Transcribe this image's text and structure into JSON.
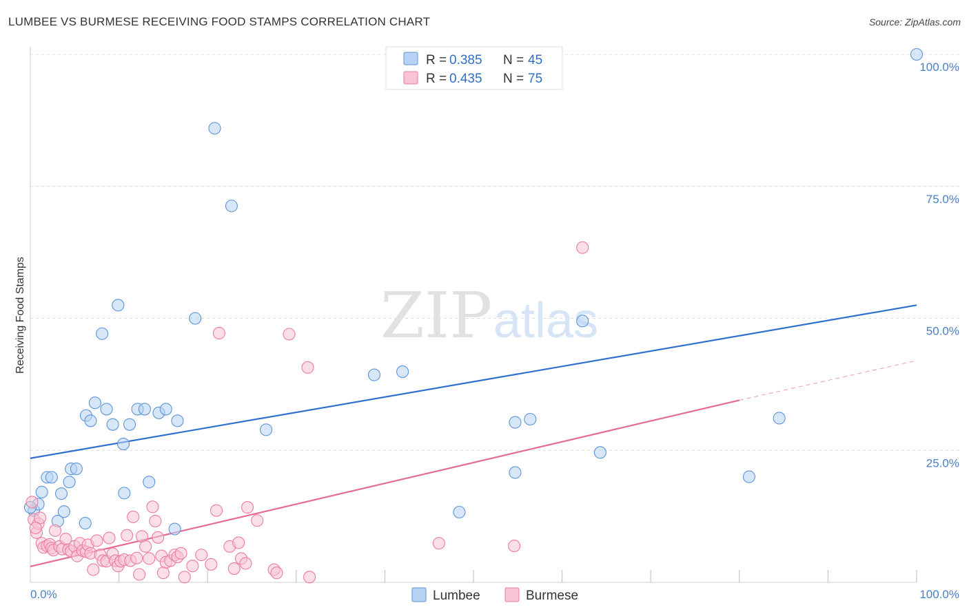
{
  "header": {
    "title": "LUMBEE VS BURMESE RECEIVING FOOD STAMPS CORRELATION CHART",
    "source": "Source: ZipAtlas.com"
  },
  "watermark": {
    "zip": "ZIP",
    "atlas": "atlas"
  },
  "legend": {
    "rows": [
      {
        "r_label": "R =",
        "r_value": "0.385",
        "n_label": "N =",
        "n_value": "45",
        "color": "#a9c8f0"
      },
      {
        "r_label": "R =",
        "r_value": "0.435",
        "n_label": "N =",
        "n_value": "75",
        "color": "#f6b8cb"
      }
    ]
  },
  "bottom_legend": {
    "items": [
      "Lumbee",
      "Burmese"
    ]
  },
  "chart_data": {
    "type": "scatter",
    "ylabel": "Receiving Food Stamps",
    "xlabel": "",
    "xlim": [
      0,
      100
    ],
    "ylim": [
      0,
      100
    ],
    "x_tick_labels": [
      "0.0%",
      "100.0%"
    ],
    "y_tick_labels": [
      "25.0%",
      "50.0%",
      "75.0%",
      "100.0%"
    ],
    "y_ticks": [
      25,
      50,
      75,
      100
    ],
    "grid": "horizontal dashed",
    "legend_position": "top-center",
    "colors": {
      "lumbee": "#5b93d9",
      "lumbee_fill": "#b8d3f3",
      "burmese": "#ec7aa0",
      "burmese_fill": "#f8c4d4",
      "lumbee_line": "#2f6fd0",
      "burmese_line": "#e56b94"
    },
    "series": [
      {
        "name": "Lumbee",
        "trend": {
          "x": [
            0,
            100
          ],
          "y": [
            23.5,
            52.5
          ]
        },
        "points": [
          [
            0.4,
            13.6
          ],
          [
            0.9,
            14.8
          ],
          [
            1.3,
            17.1
          ],
          [
            1.9,
            19.9
          ],
          [
            2.4,
            19.9
          ],
          [
            3.1,
            11.6
          ],
          [
            3.5,
            16.8
          ],
          [
            3.8,
            13.4
          ],
          [
            4.4,
            19.0
          ],
          [
            4.6,
            21.5
          ],
          [
            5.2,
            21.5
          ],
          [
            6.2,
            11.2
          ],
          [
            6.3,
            31.6
          ],
          [
            6.8,
            30.6
          ],
          [
            7.3,
            34.0
          ],
          [
            8.1,
            47.1
          ],
          [
            8.6,
            32.8
          ],
          [
            9.3,
            29.9
          ],
          [
            9.9,
            52.5
          ],
          [
            10.5,
            26.2
          ],
          [
            10.6,
            16.9
          ],
          [
            11.2,
            29.9
          ],
          [
            12.1,
            32.8
          ],
          [
            12.9,
            32.8
          ],
          [
            13.4,
            19.0
          ],
          [
            14.5,
            32.1
          ],
          [
            15.3,
            32.8
          ],
          [
            16.3,
            10.1
          ],
          [
            16.6,
            30.6
          ],
          [
            18.6,
            50.0
          ],
          [
            20.8,
            86.0
          ],
          [
            22.7,
            71.3
          ],
          [
            26.6,
            28.9
          ],
          [
            38.8,
            39.3
          ],
          [
            42.0,
            39.9
          ],
          [
            48.4,
            13.3
          ],
          [
            54.7,
            30.3
          ],
          [
            54.7,
            20.8
          ],
          [
            56.4,
            30.9
          ],
          [
            62.3,
            49.5
          ],
          [
            64.3,
            24.6
          ],
          [
            81.1,
            20.0
          ],
          [
            84.5,
            31.1
          ],
          [
            100.0,
            100.0
          ],
          [
            0.0,
            14.2
          ]
        ]
      },
      {
        "name": "Burmese",
        "trend": {
          "x": [
            0,
            80
          ],
          "y": [
            3.0,
            34.5
          ],
          "dashed_to": {
            "x": 100,
            "y": 42.0
          }
        },
        "points": [
          [
            0.4,
            11.9
          ],
          [
            0.7,
            9.4
          ],
          [
            0.9,
            11.1
          ],
          [
            1.3,
            7.4
          ],
          [
            1.5,
            6.6
          ],
          [
            1.9,
            6.9
          ],
          [
            2.2,
            7.2
          ],
          [
            2.4,
            6.5
          ],
          [
            2.6,
            6.1
          ],
          [
            2.8,
            9.8
          ],
          [
            3.3,
            6.8
          ],
          [
            3.6,
            6.3
          ],
          [
            4.0,
            8.2
          ],
          [
            4.3,
            6.2
          ],
          [
            4.6,
            5.9
          ],
          [
            5.0,
            6.8
          ],
          [
            5.3,
            5.0
          ],
          [
            5.6,
            7.4
          ],
          [
            5.9,
            6.0
          ],
          [
            6.3,
            5.8
          ],
          [
            6.5,
            7.1
          ],
          [
            6.8,
            5.5
          ],
          [
            7.1,
            2.4
          ],
          [
            7.5,
            7.9
          ],
          [
            7.9,
            5.2
          ],
          [
            8.2,
            4.1
          ],
          [
            8.6,
            4.0
          ],
          [
            8.9,
            8.4
          ],
          [
            9.3,
            5.4
          ],
          [
            9.6,
            4.1
          ],
          [
            9.9,
            3.1
          ],
          [
            10.2,
            4.0
          ],
          [
            10.6,
            4.3
          ],
          [
            10.9,
            8.9
          ],
          [
            11.3,
            4.1
          ],
          [
            11.6,
            12.4
          ],
          [
            12.0,
            4.6
          ],
          [
            12.3,
            1.5
          ],
          [
            12.6,
            8.7
          ],
          [
            13.0,
            6.8
          ],
          [
            13.4,
            4.5
          ],
          [
            13.8,
            14.3
          ],
          [
            14.1,
            11.6
          ],
          [
            14.4,
            8.5
          ],
          [
            14.8,
            5.0
          ],
          [
            15.0,
            1.8
          ],
          [
            15.3,
            3.8
          ],
          [
            15.8,
            4.1
          ],
          [
            16.3,
            5.2
          ],
          [
            16.6,
            4.8
          ],
          [
            17.0,
            5.5
          ],
          [
            17.4,
            1.0
          ],
          [
            18.3,
            3.1
          ],
          [
            19.3,
            5.2
          ],
          [
            20.4,
            3.4
          ],
          [
            21.0,
            13.6
          ],
          [
            21.3,
            47.2
          ],
          [
            22.5,
            6.8
          ],
          [
            23.0,
            2.6
          ],
          [
            23.5,
            7.5
          ],
          [
            23.8,
            4.5
          ],
          [
            24.3,
            3.6
          ],
          [
            24.5,
            14.2
          ],
          [
            25.6,
            11.7
          ],
          [
            27.5,
            2.4
          ],
          [
            27.8,
            1.8
          ],
          [
            29.2,
            47.0
          ],
          [
            31.3,
            40.7
          ],
          [
            31.5,
            1.0
          ],
          [
            46.1,
            7.4
          ],
          [
            54.6,
            6.9
          ],
          [
            62.3,
            63.4
          ],
          [
            0.2,
            15.2
          ],
          [
            1.1,
            12.2
          ],
          [
            0.6,
            10.3
          ]
        ]
      }
    ]
  }
}
